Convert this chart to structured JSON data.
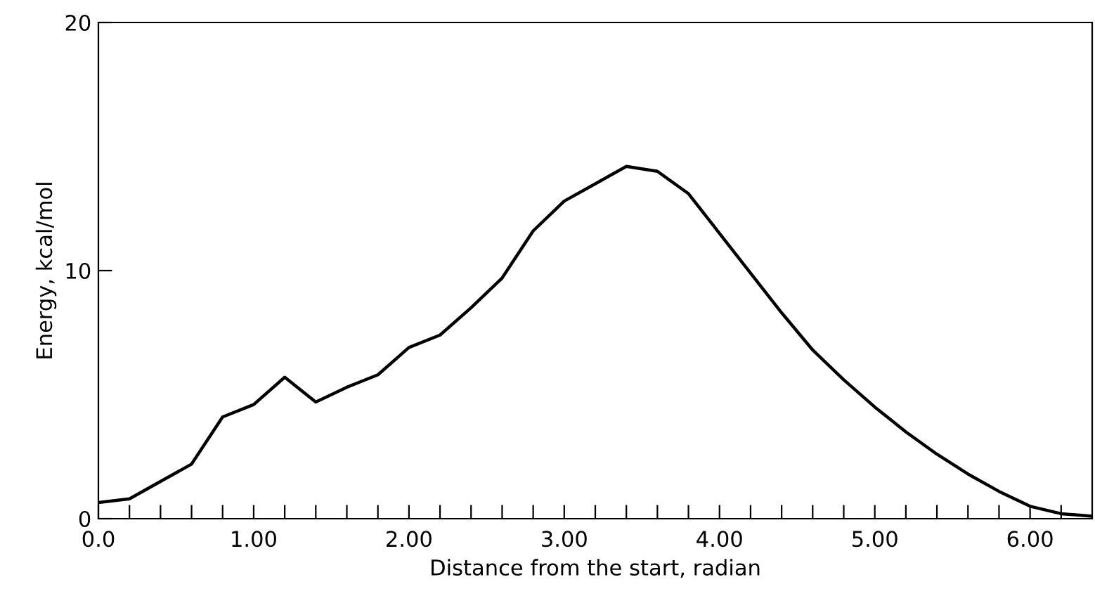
{
  "chart_data": {
    "type": "line",
    "xlabel": "Distance from the start, radian",
    "ylabel": "Energy, kcal/mol",
    "x": [
      0.0,
      0.2,
      0.4,
      0.6,
      0.8,
      1.0,
      1.2,
      1.4,
      1.6,
      1.8,
      2.0,
      2.2,
      2.4,
      2.6,
      2.8,
      3.0,
      3.2,
      3.4,
      3.6,
      3.8,
      4.0,
      4.2,
      4.4,
      4.6,
      4.8,
      5.0,
      5.2,
      5.4,
      5.6,
      5.8,
      6.0,
      6.2,
      6.4
    ],
    "series": [
      {
        "color": "#000000",
        "values": [
          0.65,
          0.8,
          1.5,
          2.2,
          4.1,
          4.6,
          5.7,
          4.7,
          5.3,
          5.8,
          6.9,
          7.4,
          8.5,
          9.7,
          11.6,
          12.8,
          13.5,
          14.2,
          14.0,
          13.1,
          11.5,
          9.9,
          8.3,
          6.8,
          5.6,
          4.5,
          3.5,
          2.6,
          1.8,
          1.1,
          0.5,
          0.2,
          0.1
        ]
      }
    ],
    "xlim": [
      0,
      6.4
    ],
    "ylim": [
      0,
      20
    ],
    "xticks": [
      {
        "value": 0,
        "label": "0.0"
      },
      {
        "value": 0.2,
        "label": null
      },
      {
        "value": 0.4,
        "label": null
      },
      {
        "value": 0.6,
        "label": null
      },
      {
        "value": 0.8,
        "label": null
      },
      {
        "value": 1,
        "label": "1.00"
      },
      {
        "value": 1.2,
        "label": null
      },
      {
        "value": 1.4,
        "label": null
      },
      {
        "value": 1.6,
        "label": null
      },
      {
        "value": 1.8,
        "label": null
      },
      {
        "value": 2,
        "label": "2.00"
      },
      {
        "value": 2.2,
        "label": null
      },
      {
        "value": 2.4,
        "label": null
      },
      {
        "value": 2.6,
        "label": null
      },
      {
        "value": 2.8,
        "label": null
      },
      {
        "value": 3,
        "label": "3.00"
      },
      {
        "value": 3.2,
        "label": null
      },
      {
        "value": 3.4,
        "label": null
      },
      {
        "value": 3.6,
        "label": null
      },
      {
        "value": 3.8,
        "label": null
      },
      {
        "value": 4,
        "label": "4.00"
      },
      {
        "value": 4.2,
        "label": null
      },
      {
        "value": 4.4,
        "label": null
      },
      {
        "value": 4.6,
        "label": null
      },
      {
        "value": 4.8,
        "label": null
      },
      {
        "value": 5,
        "label": "5.00"
      },
      {
        "value": 5.2,
        "label": null
      },
      {
        "value": 5.4,
        "label": null
      },
      {
        "value": 5.6,
        "label": null
      },
      {
        "value": 5.8,
        "label": null
      },
      {
        "value": 6,
        "label": "6.00"
      },
      {
        "value": 6.2,
        "label": null
      }
    ],
    "yticks": [
      0,
      10,
      20
    ],
    "grid": false,
    "marker": "none",
    "line_style": "solid"
  }
}
